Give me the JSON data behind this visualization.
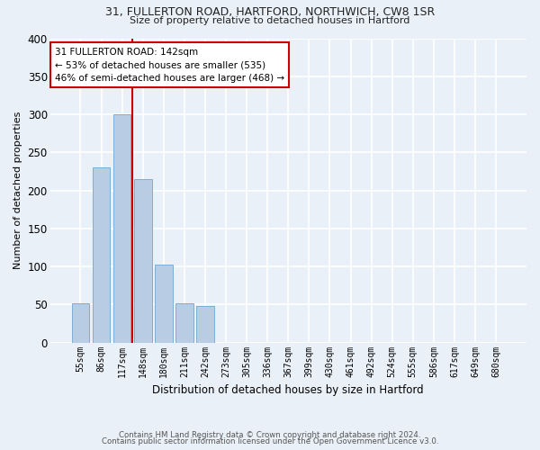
{
  "title1": "31, FULLERTON ROAD, HARTFORD, NORTHWICH, CW8 1SR",
  "title2": "Size of property relative to detached houses in Hartford",
  "xlabel": "Distribution of detached houses by size in Hartford",
  "ylabel": "Number of detached properties",
  "bin_labels": [
    "55sqm",
    "86sqm",
    "117sqm",
    "148sqm",
    "180sqm",
    "211sqm",
    "242sqm",
    "273sqm",
    "305sqm",
    "336sqm",
    "367sqm",
    "399sqm",
    "430sqm",
    "461sqm",
    "492sqm",
    "524sqm",
    "555sqm",
    "586sqm",
    "617sqm",
    "649sqm",
    "680sqm"
  ],
  "bar_values": [
    52,
    230,
    300,
    215,
    103,
    52,
    48,
    0,
    0,
    0,
    0,
    0,
    0,
    0,
    0,
    0,
    0,
    0,
    0,
    0,
    0
  ],
  "bar_color": "#b8cce4",
  "bar_edge_color": "#7bafd4",
  "background_color": "#eaf0f8",
  "grid_color": "#ffffff",
  "property_label": "31 FULLERTON ROAD: 142sqm",
  "annotation_line1": "← 53% of detached houses are smaller (535)",
  "annotation_line2": "46% of semi-detached houses are larger (468) →",
  "vline_color": "#cc0000",
  "annotation_box_color": "#ffffff",
  "annotation_box_edge": "#cc0000",
  "ylim": [
    0,
    400
  ],
  "yticks": [
    0,
    50,
    100,
    150,
    200,
    250,
    300,
    350,
    400
  ],
  "footer1": "Contains HM Land Registry data © Crown copyright and database right 2024.",
  "footer2": "Contains public sector information licensed under the Open Government Licence v3.0.",
  "vline_x_index": 2.5
}
